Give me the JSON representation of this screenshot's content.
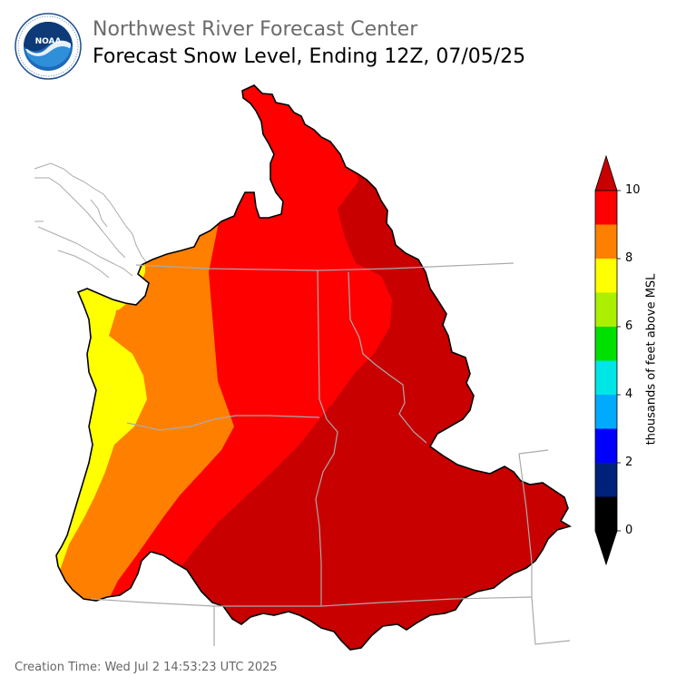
{
  "header": {
    "agency": "Northwest River Forecast Center",
    "product": "Forecast Snow Level, Ending 12Z, 07/05/25"
  },
  "logo": {
    "name": "NOAA",
    "ring_text": "NATIONAL OCEANIC AND ATMOSPHERIC ADMINISTRATION · U.S. DEPARTMENT OF COMMERCE"
  },
  "legend": {
    "label": "thousands of feet above MSL",
    "ticks": [
      "0",
      "2",
      "4",
      "6",
      "8",
      "10"
    ],
    "colors": {
      "0_1": "#000000",
      "1_2": "#00217a",
      "2_3": "#0000ff",
      "3_4": "#00aaff",
      "4_5": "#00e5e5",
      "5_6": "#00e000",
      "6_7": "#aaf000",
      "7_8": "#ffff00",
      "8_9": "#ff8000",
      "9_10": "#ff0000",
      "over_10": "#c80000"
    }
  },
  "map_colors": {
    "yellow": "#ffff00",
    "orange": "#ff8000",
    "red": "#ff0000",
    "darkred": "#c80000",
    "boundary": "#aaaaaa"
  },
  "footer": {
    "creation": "Creation Time: Wed Jul 2 14:53:23 UTC 2025"
  }
}
